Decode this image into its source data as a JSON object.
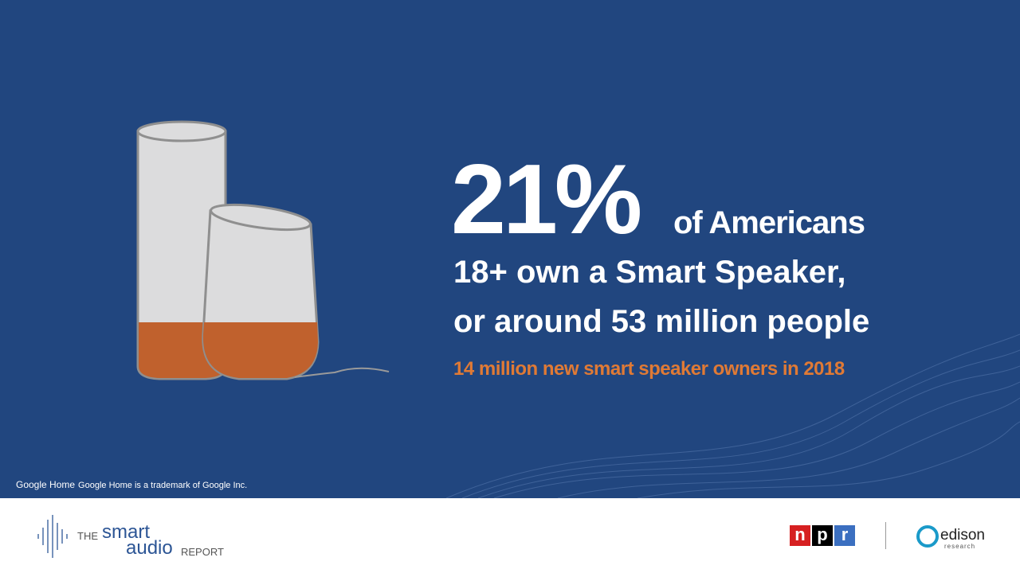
{
  "headline": {
    "stat": "21%",
    "stat_suffix": "of Americans",
    "line2": "18+ own a Smart Speaker,",
    "line3": "or around 53 million people",
    "subline": "14 million new smart speaker owners in 2018"
  },
  "footnote": {
    "brand": "Google Home",
    "text": "Google Home is a trademark of Google Inc."
  },
  "footer": {
    "report_the": "THE",
    "report_smart": "smart",
    "report_audio": "audio",
    "report_report": "REPORT",
    "npr": [
      "n",
      "p",
      "r"
    ],
    "edison": "edison",
    "edison_sub": "research"
  }
}
